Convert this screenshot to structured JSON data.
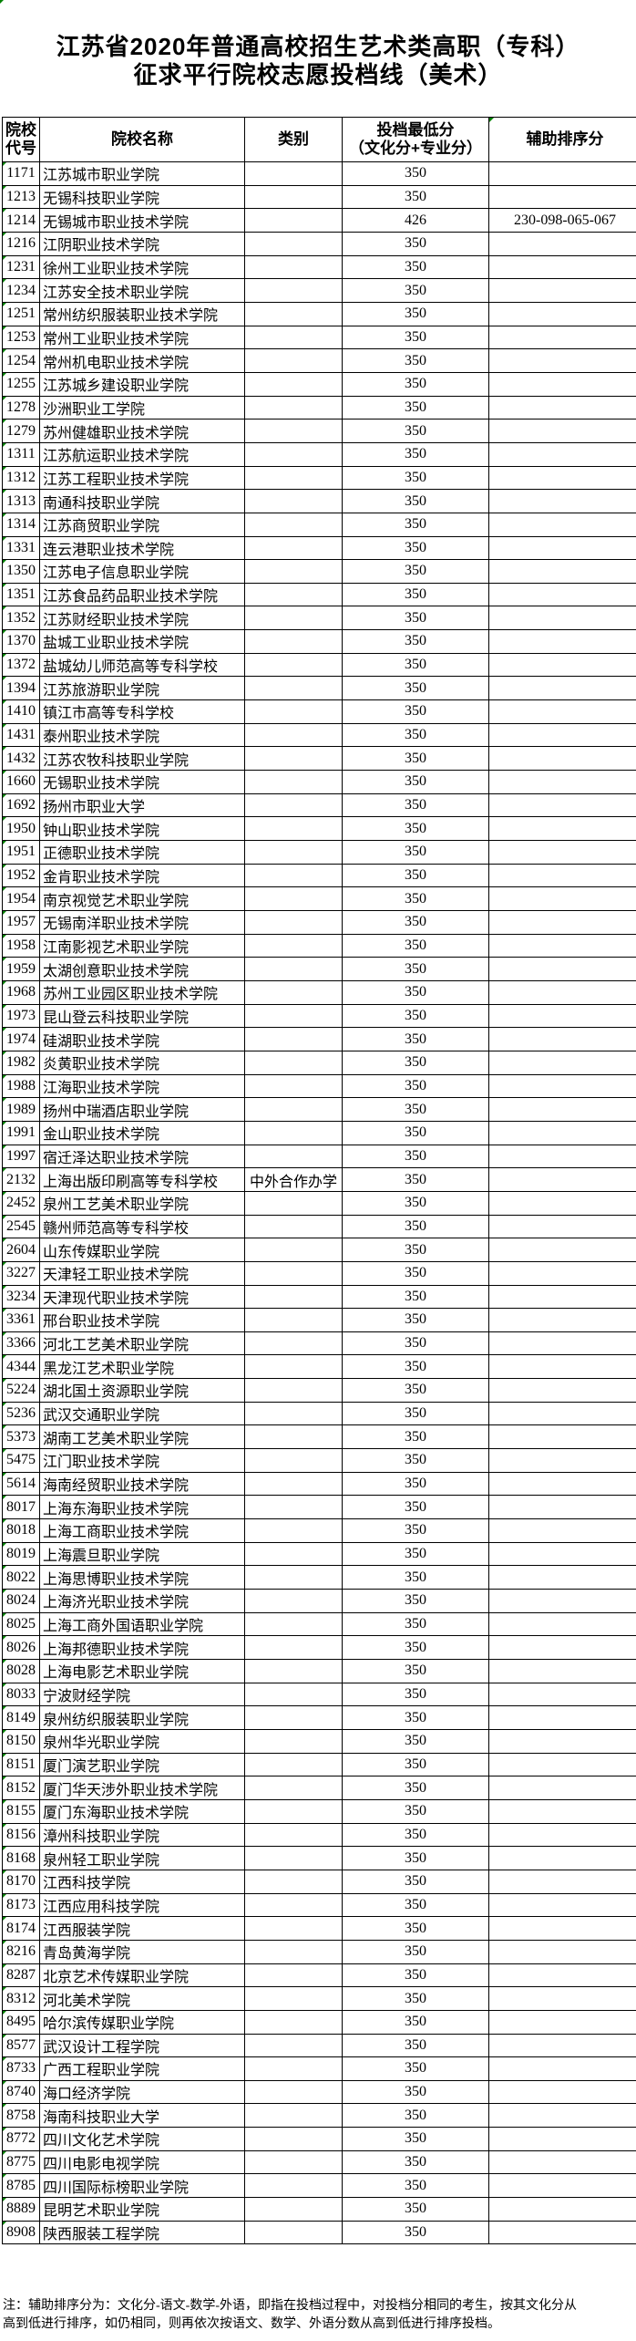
{
  "colors": {
    "border": "#000000",
    "text": "#000000",
    "marker_green": "#008000",
    "background": "#ffffff"
  },
  "title": {
    "line1": "江苏省2020年普通高校招生艺术类高职（专科）",
    "line2": "征求平行院校志愿投档线（美术）"
  },
  "table": {
    "columns": [
      {
        "id": "code",
        "label_lines": [
          "院校",
          "代号"
        ],
        "marker": false
      },
      {
        "id": "name",
        "label_lines": [
          "院校名称"
        ],
        "marker": false
      },
      {
        "id": "category",
        "label_lines": [
          "类别"
        ],
        "marker": false
      },
      {
        "id": "score",
        "label_lines": [
          "投档最低分",
          "（文化分+专业分）"
        ],
        "marker": false
      },
      {
        "id": "aux",
        "label_lines": [
          "辅助排序分"
        ],
        "marker": true
      }
    ],
    "rows": [
      [
        "1171",
        "江苏城市职业学院",
        "",
        "350",
        ""
      ],
      [
        "1213",
        "无锡科技职业学院",
        "",
        "350",
        ""
      ],
      [
        "1214",
        "无锡城市职业技术学院",
        "",
        "426",
        "230-098-065-067"
      ],
      [
        "1216",
        "江阴职业技术学院",
        "",
        "350",
        ""
      ],
      [
        "1231",
        "徐州工业职业技术学院",
        "",
        "350",
        ""
      ],
      [
        "1234",
        "江苏安全技术职业学院",
        "",
        "350",
        ""
      ],
      [
        "1251",
        "常州纺织服装职业技术学院",
        "",
        "350",
        ""
      ],
      [
        "1253",
        "常州工业职业技术学院",
        "",
        "350",
        ""
      ],
      [
        "1254",
        "常州机电职业技术学院",
        "",
        "350",
        ""
      ],
      [
        "1255",
        "江苏城乡建设职业学院",
        "",
        "350",
        ""
      ],
      [
        "1278",
        "沙洲职业工学院",
        "",
        "350",
        ""
      ],
      [
        "1279",
        "苏州健雄职业技术学院",
        "",
        "350",
        ""
      ],
      [
        "1311",
        "江苏航运职业技术学院",
        "",
        "350",
        ""
      ],
      [
        "1312",
        "江苏工程职业技术学院",
        "",
        "350",
        ""
      ],
      [
        "1313",
        "南通科技职业学院",
        "",
        "350",
        ""
      ],
      [
        "1314",
        "江苏商贸职业学院",
        "",
        "350",
        ""
      ],
      [
        "1331",
        "连云港职业技术学院",
        "",
        "350",
        ""
      ],
      [
        "1350",
        "江苏电子信息职业学院",
        "",
        "350",
        ""
      ],
      [
        "1351",
        "江苏食品药品职业技术学院",
        "",
        "350",
        ""
      ],
      [
        "1352",
        "江苏财经职业技术学院",
        "",
        "350",
        ""
      ],
      [
        "1370",
        "盐城工业职业技术学院",
        "",
        "350",
        ""
      ],
      [
        "1372",
        "盐城幼儿师范高等专科学校",
        "",
        "350",
        ""
      ],
      [
        "1394",
        "江苏旅游职业学院",
        "",
        "350",
        ""
      ],
      [
        "1410",
        "镇江市高等专科学校",
        "",
        "350",
        ""
      ],
      [
        "1431",
        "泰州职业技术学院",
        "",
        "350",
        ""
      ],
      [
        "1432",
        "江苏农牧科技职业学院",
        "",
        "350",
        ""
      ],
      [
        "1660",
        "无锡职业技术学院",
        "",
        "350",
        ""
      ],
      [
        "1692",
        "扬州市职业大学",
        "",
        "350",
        ""
      ],
      [
        "1950",
        "钟山职业技术学院",
        "",
        "350",
        ""
      ],
      [
        "1951",
        "正德职业技术学院",
        "",
        "350",
        ""
      ],
      [
        "1952",
        "金肯职业技术学院",
        "",
        "350",
        ""
      ],
      [
        "1954",
        "南京视觉艺术职业学院",
        "",
        "350",
        ""
      ],
      [
        "1957",
        "无锡南洋职业技术学院",
        "",
        "350",
        ""
      ],
      [
        "1958",
        "江南影视艺术职业学院",
        "",
        "350",
        ""
      ],
      [
        "1959",
        "太湖创意职业技术学院",
        "",
        "350",
        ""
      ],
      [
        "1968",
        "苏州工业园区职业技术学院",
        "",
        "350",
        ""
      ],
      [
        "1973",
        "昆山登云科技职业学院",
        "",
        "350",
        ""
      ],
      [
        "1974",
        "硅湖职业技术学院",
        "",
        "350",
        ""
      ],
      [
        "1982",
        "炎黄职业技术学院",
        "",
        "350",
        ""
      ],
      [
        "1988",
        "江海职业技术学院",
        "",
        "350",
        ""
      ],
      [
        "1989",
        "扬州中瑞酒店职业学院",
        "",
        "350",
        ""
      ],
      [
        "1991",
        "金山职业技术学院",
        "",
        "350",
        ""
      ],
      [
        "1997",
        "宿迁泽达职业技术学院",
        "",
        "350",
        ""
      ],
      [
        "2132",
        "上海出版印刷高等专科学校",
        "中外合作办学",
        "350",
        ""
      ],
      [
        "2452",
        "泉州工艺美术职业学院",
        "",
        "350",
        ""
      ],
      [
        "2545",
        "赣州师范高等专科学校",
        "",
        "350",
        ""
      ],
      [
        "2604",
        "山东传媒职业学院",
        "",
        "350",
        ""
      ],
      [
        "3227",
        "天津轻工职业技术学院",
        "",
        "350",
        ""
      ],
      [
        "3234",
        "天津现代职业技术学院",
        "",
        "350",
        ""
      ],
      [
        "3361",
        "邢台职业技术学院",
        "",
        "350",
        ""
      ],
      [
        "3366",
        "河北工艺美术职业学院",
        "",
        "350",
        ""
      ],
      [
        "4344",
        "黑龙江艺术职业学院",
        "",
        "350",
        ""
      ],
      [
        "5224",
        "湖北国土资源职业学院",
        "",
        "350",
        ""
      ],
      [
        "5236",
        "武汉交通职业学院",
        "",
        "350",
        ""
      ],
      [
        "5373",
        "湖南工艺美术职业学院",
        "",
        "350",
        ""
      ],
      [
        "5475",
        "江门职业技术学院",
        "",
        "350",
        ""
      ],
      [
        "5614",
        "海南经贸职业技术学院",
        "",
        "350",
        ""
      ],
      [
        "8017",
        "上海东海职业技术学院",
        "",
        "350",
        ""
      ],
      [
        "8018",
        "上海工商职业技术学院",
        "",
        "350",
        ""
      ],
      [
        "8019",
        "上海震旦职业学院",
        "",
        "350",
        ""
      ],
      [
        "8022",
        "上海思博职业技术学院",
        "",
        "350",
        ""
      ],
      [
        "8024",
        "上海济光职业技术学院",
        "",
        "350",
        ""
      ],
      [
        "8025",
        "上海工商外国语职业学院",
        "",
        "350",
        ""
      ],
      [
        "8026",
        "上海邦德职业技术学院",
        "",
        "350",
        ""
      ],
      [
        "8028",
        "上海电影艺术职业学院",
        "",
        "350",
        ""
      ],
      [
        "8033",
        "宁波财经学院",
        "",
        "350",
        ""
      ],
      [
        "8149",
        "泉州纺织服装职业学院",
        "",
        "350",
        ""
      ],
      [
        "8150",
        "泉州华光职业学院",
        "",
        "350",
        ""
      ],
      [
        "8151",
        "厦门演艺职业学院",
        "",
        "350",
        ""
      ],
      [
        "8152",
        "厦门华天涉外职业技术学院",
        "",
        "350",
        ""
      ],
      [
        "8155",
        "厦门东海职业技术学院",
        "",
        "350",
        ""
      ],
      [
        "8156",
        "漳州科技职业学院",
        "",
        "350",
        ""
      ],
      [
        "8168",
        "泉州轻工职业学院",
        "",
        "350",
        ""
      ],
      [
        "8170",
        "江西科技学院",
        "",
        "350",
        ""
      ],
      [
        "8173",
        "江西应用科技学院",
        "",
        "350",
        ""
      ],
      [
        "8174",
        "江西服装学院",
        "",
        "350",
        ""
      ],
      [
        "8216",
        "青岛黄海学院",
        "",
        "350",
        ""
      ],
      [
        "8287",
        "北京艺术传媒职业学院",
        "",
        "350",
        ""
      ],
      [
        "8312",
        "河北美术学院",
        "",
        "350",
        ""
      ],
      [
        "8495",
        "哈尔滨传媒职业学院",
        "",
        "350",
        ""
      ],
      [
        "8577",
        "武汉设计工程学院",
        "",
        "350",
        ""
      ],
      [
        "8733",
        "广西工程职业学院",
        "",
        "350",
        ""
      ],
      [
        "8740",
        "海口经济学院",
        "",
        "350",
        ""
      ],
      [
        "8758",
        "海南科技职业大学",
        "",
        "350",
        ""
      ],
      [
        "8772",
        "四川文化艺术学院",
        "",
        "350",
        ""
      ],
      [
        "8775",
        "四川电影电视学院",
        "",
        "350",
        ""
      ],
      [
        "8785",
        "四川国际标榜职业学院",
        "",
        "350",
        ""
      ],
      [
        "8889",
        "昆明艺术职业学院",
        "",
        "350",
        ""
      ],
      [
        "8908",
        "陕西服装工程学院",
        "",
        "350",
        ""
      ]
    ]
  },
  "footnote": {
    "line1": "注：辅助排序分为：文化分-语文-数学-外语，即指在投档过程中，对投档分相同的考生，按其文化分从",
    "line2": "高到低进行排序，如仍相同，则再依次按语文、数学、外语分数从高到低进行排序投档。"
  }
}
